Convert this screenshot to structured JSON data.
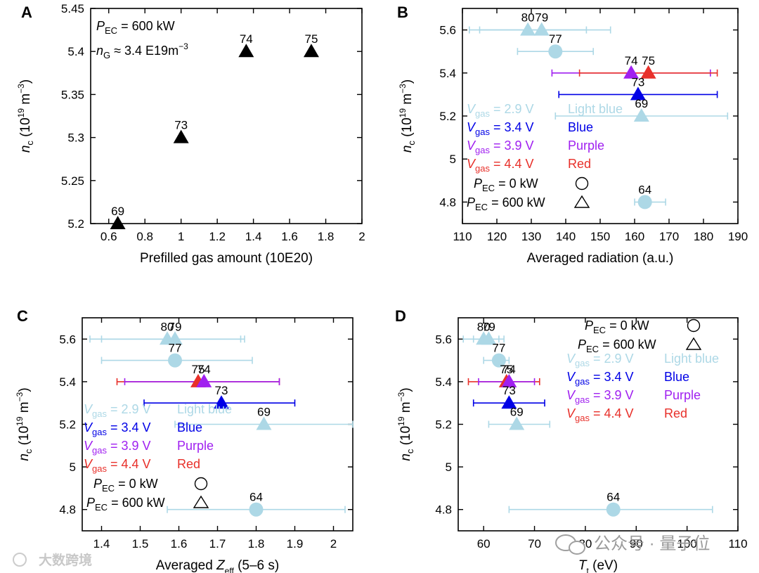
{
  "colors": {
    "lightblue": "#add8e6",
    "blue": "#0000e6",
    "purple": "#a020f0",
    "red": "#e8302a",
    "black": "#000000"
  },
  "watermarks": {
    "left": "大数跨境",
    "right": "公众号 · 量子位"
  },
  "chart_data": [
    {
      "panel": "A",
      "type": "scatter",
      "xlabel": "Prefilled gas amount (10E20)",
      "xlim": [
        0.5,
        2.0
      ],
      "ylim": [
        5.2,
        5.45
      ],
      "xticks": [
        "0.6",
        "0.8",
        "1",
        "1.2",
        "1.4",
        "1.6",
        "1.8",
        "2"
      ],
      "yticks": [
        "5.2",
        "5.25",
        "5.3",
        "5.35",
        "5.4",
        "5.45"
      ],
      "annotation_pec_value": "= 600 kW",
      "annotation_ng_value": "≈ 3.4 E19m",
      "points": [
        {
          "label": "69",
          "x": 0.65,
          "y": 5.2,
          "color": "black",
          "marker": "triangle"
        },
        {
          "label": "73",
          "x": 1.0,
          "y": 5.3,
          "color": "black",
          "marker": "triangle"
        },
        {
          "label": "74",
          "x": 1.36,
          "y": 5.4,
          "color": "black",
          "marker": "triangle"
        },
        {
          "label": "75",
          "x": 1.72,
          "y": 5.4,
          "color": "black",
          "marker": "triangle"
        }
      ]
    },
    {
      "panel": "B",
      "type": "scatter",
      "xlabel": "Averaged radiation (a.u.)",
      "xlim": [
        110,
        190
      ],
      "ylim": [
        4.7,
        5.7
      ],
      "xticks": [
        "110",
        "120",
        "130",
        "140",
        "150",
        "160",
        "170",
        "180",
        "190"
      ],
      "yticks": [
        "4.8",
        "5",
        "5.2",
        "5.4",
        "5.6"
      ],
      "points": [
        {
          "label": "80",
          "x": 129,
          "y": 5.6,
          "xerr": [
            112,
            146
          ],
          "color": "lightblue",
          "marker": "triangle"
        },
        {
          "label": "79",
          "x": 133,
          "y": 5.6,
          "xerr": [
            115,
            153
          ],
          "color": "lightblue",
          "marker": "triangle"
        },
        {
          "label": "77",
          "x": 137,
          "y": 5.5,
          "xerr": [
            126,
            148
          ],
          "color": "lightblue",
          "marker": "circle"
        },
        {
          "label": "74",
          "x": 159,
          "y": 5.4,
          "xerr": [
            136,
            182
          ],
          "color": "purple",
          "marker": "triangle"
        },
        {
          "label": "75",
          "x": 164,
          "y": 5.4,
          "xerr": [
            144,
            184
          ],
          "color": "red",
          "marker": "triangle"
        },
        {
          "label": "73",
          "x": 161,
          "y": 5.3,
          "xerr": [
            138,
            184
          ],
          "color": "blue",
          "marker": "triangle"
        },
        {
          "label": "69",
          "x": 162,
          "y": 5.2,
          "xerr": [
            137,
            187
          ],
          "color": "lightblue",
          "marker": "triangle"
        },
        {
          "label": "64",
          "x": 163,
          "y": 4.8,
          "xerr": [
            160,
            169
          ],
          "color": "lightblue",
          "marker": "circle"
        }
      ]
    },
    {
      "panel": "C",
      "type": "scatter",
      "xlabel_pre": "Averaged ",
      "xlabel_var": "Z",
      "xlabel_sub": "eff",
      "xlabel_post": " (5–6 s)",
      "xlim": [
        1.35,
        2.05
      ],
      "ylim": [
        4.7,
        5.7
      ],
      "xticks": [
        "1.4",
        "1.5",
        "1.6",
        "1.7",
        "1.8",
        "1.9",
        "2"
      ],
      "yticks": [
        "4.8",
        "5",
        "5.2",
        "5.4",
        "5.6"
      ],
      "points": [
        {
          "label": "80",
          "x": 1.57,
          "y": 5.6,
          "xerr": [
            1.37,
            1.77
          ],
          "color": "lightblue",
          "marker": "triangle"
        },
        {
          "label": "79",
          "x": 1.59,
          "y": 5.6,
          "xerr": [
            1.4,
            1.76
          ],
          "color": "lightblue",
          "marker": "triangle"
        },
        {
          "label": "77",
          "x": 1.59,
          "y": 5.5,
          "xerr": [
            1.4,
            1.79
          ],
          "color": "lightblue",
          "marker": "circle"
        },
        {
          "label": "75",
          "x": 1.65,
          "y": 5.4,
          "xerr": [
            1.44,
            1.86
          ],
          "color": "red",
          "marker": "triangle"
        },
        {
          "label": "74",
          "x": 1.665,
          "y": 5.4,
          "xerr": [
            1.46,
            1.86
          ],
          "color": "purple",
          "marker": "triangle"
        },
        {
          "label": "73",
          "x": 1.71,
          "y": 5.3,
          "xerr": [
            1.51,
            1.9
          ],
          "color": "blue",
          "marker": "triangle"
        },
        {
          "label": "69",
          "x": 1.82,
          "y": 5.2,
          "xerr": [
            1.59,
            2.05
          ],
          "color": "lightblue",
          "marker": "triangle"
        },
        {
          "label": "64",
          "x": 1.8,
          "y": 4.8,
          "xerr": [
            1.57,
            2.03
          ],
          "color": "lightblue",
          "marker": "circle"
        }
      ]
    },
    {
      "panel": "D",
      "type": "scatter",
      "xlabel_var": "T",
      "xlabel_sub": "t",
      "xlabel_post": " (eV)",
      "xlim": [
        55,
        110
      ],
      "ylim": [
        4.7,
        5.7
      ],
      "xticks": [
        "60",
        "70",
        "80",
        "90",
        "100",
        "110"
      ],
      "yticks": [
        "4.8",
        "5",
        "5.2",
        "5.4",
        "5.6"
      ],
      "points": [
        {
          "label": "80",
          "x": 60,
          "y": 5.6,
          "xerr": [
            56,
            63
          ],
          "color": "lightblue",
          "marker": "triangle"
        },
        {
          "label": "79",
          "x": 61,
          "y": 5.6,
          "xerr": [
            58,
            64
          ],
          "color": "lightblue",
          "marker": "triangle"
        },
        {
          "label": "77",
          "x": 63,
          "y": 5.5,
          "xerr": [
            60,
            65
          ],
          "color": "lightblue",
          "marker": "circle"
        },
        {
          "label": "75",
          "x": 64.5,
          "y": 5.4,
          "xerr": [
            57,
            71
          ],
          "color": "red",
          "marker": "triangle"
        },
        {
          "label": "74",
          "x": 65,
          "y": 5.4,
          "xerr": [
            59,
            70
          ],
          "color": "purple",
          "marker": "triangle"
        },
        {
          "label": "73",
          "x": 65,
          "y": 5.3,
          "xerr": [
            58,
            72
          ],
          "color": "blue",
          "marker": "triangle"
        },
        {
          "label": "69",
          "x": 66.5,
          "y": 5.2,
          "xerr": [
            61,
            73
          ],
          "color": "lightblue",
          "marker": "triangle"
        },
        {
          "label": "64",
          "x": 85.5,
          "y": 4.8,
          "xerr": [
            65,
            105
          ],
          "color": "lightblue",
          "marker": "circle"
        }
      ]
    }
  ],
  "legend": {
    "vgas_entries": [
      {
        "value": "= 2.9 V",
        "name": "Light blue",
        "color": "lightblue"
      },
      {
        "value": "= 3.4 V",
        "name": "Blue",
        "color": "blue"
      },
      {
        "value": "= 3.9 V",
        "name": "Purple",
        "color": "purple"
      },
      {
        "value": "= 4.4 V",
        "name": "Red",
        "color": "red"
      }
    ],
    "pec_entries": [
      {
        "value": "= 0 kW",
        "marker": "circle"
      },
      {
        "value": "= 600 kW",
        "marker": "triangle"
      }
    ]
  }
}
